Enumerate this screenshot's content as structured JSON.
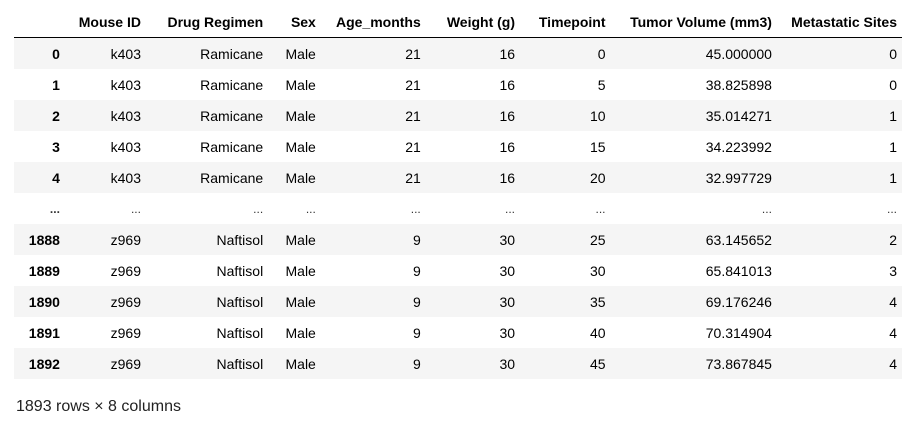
{
  "columns": [
    "",
    "Mouse ID",
    "Drug Regimen",
    "Sex",
    "Age_months",
    "Weight (g)",
    "Timepoint",
    "Tumor Volume (mm3)",
    "Metastatic Sites"
  ],
  "rows": [
    [
      "0",
      "k403",
      "Ramicane",
      "Male",
      "21",
      "16",
      "0",
      "45.000000",
      "0"
    ],
    [
      "1",
      "k403",
      "Ramicane",
      "Male",
      "21",
      "16",
      "5",
      "38.825898",
      "0"
    ],
    [
      "2",
      "k403",
      "Ramicane",
      "Male",
      "21",
      "16",
      "10",
      "35.014271",
      "1"
    ],
    [
      "3",
      "k403",
      "Ramicane",
      "Male",
      "21",
      "16",
      "15",
      "34.223992",
      "1"
    ],
    [
      "4",
      "k403",
      "Ramicane",
      "Male",
      "21",
      "16",
      "20",
      "32.997729",
      "1"
    ],
    [
      "...",
      "...",
      "...",
      "...",
      "...",
      "...",
      "...",
      "...",
      "..."
    ],
    [
      "1888",
      "z969",
      "Naftisol",
      "Male",
      "9",
      "30",
      "25",
      "63.145652",
      "2"
    ],
    [
      "1889",
      "z969",
      "Naftisol",
      "Male",
      "9",
      "30",
      "30",
      "65.841013",
      "3"
    ],
    [
      "1890",
      "z969",
      "Naftisol",
      "Male",
      "9",
      "30",
      "35",
      "69.176246",
      "4"
    ],
    [
      "1891",
      "z969",
      "Naftisol",
      "Male",
      "9",
      "30",
      "40",
      "70.314904",
      "4"
    ],
    [
      "1892",
      "z969",
      "Naftisol",
      "Male",
      "9",
      "30",
      "45",
      "73.867845",
      "4"
    ]
  ],
  "summary": "1893 rows × 8 columns"
}
